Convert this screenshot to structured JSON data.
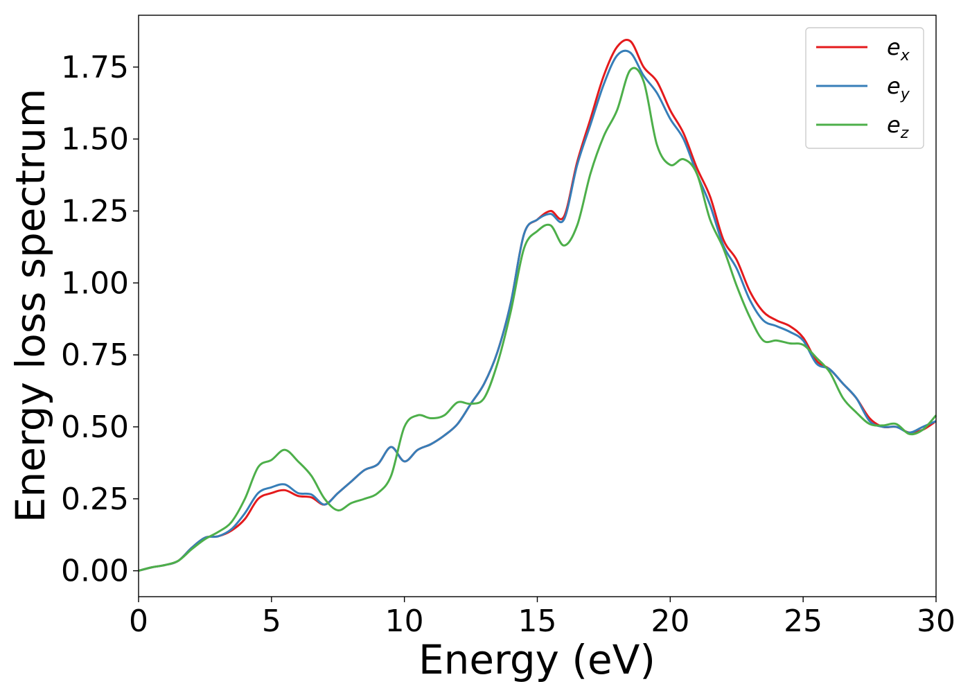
{
  "chart_data": {
    "type": "line",
    "title": "",
    "xlabel": "Energy (eV)",
    "ylabel": "Energy loss spectrum",
    "xlim": [
      0,
      30
    ],
    "ylim": [
      -0.09,
      1.93
    ],
    "xticks": [
      0,
      5,
      10,
      15,
      20,
      25,
      30
    ],
    "xtick_labels": [
      "0",
      "5",
      "10",
      "15",
      "20",
      "25",
      "30"
    ],
    "yticks": [
      0.0,
      0.25,
      0.5,
      0.75,
      1.0,
      1.25,
      1.5,
      1.75
    ],
    "ytick_labels": [
      "0.00",
      "0.25",
      "0.50",
      "0.75",
      "1.00",
      "1.25",
      "1.50",
      "1.75"
    ],
    "grid": false,
    "legend_position": "top-right",
    "series": [
      {
        "name": "e_x",
        "label_base": "e",
        "label_sub": "x",
        "color": "#e41a1c",
        "points": [
          [
            0,
            0
          ],
          [
            0.5,
            0.012
          ],
          [
            1,
            0.02
          ],
          [
            1.5,
            0.035
          ],
          [
            2,
            0.08
          ],
          [
            2.5,
            0.115
          ],
          [
            3,
            0.12
          ],
          [
            3.5,
            0.14
          ],
          [
            4,
            0.18
          ],
          [
            4.5,
            0.25
          ],
          [
            5,
            0.27
          ],
          [
            5.5,
            0.28
          ],
          [
            6,
            0.26
          ],
          [
            6.5,
            0.255
          ],
          [
            7,
            0.23
          ],
          [
            7.5,
            0.27
          ],
          [
            8,
            0.31
          ],
          [
            8.5,
            0.35
          ],
          [
            9,
            0.37
          ],
          [
            9.5,
            0.43
          ],
          [
            10,
            0.38
          ],
          [
            10.5,
            0.42
          ],
          [
            11,
            0.44
          ],
          [
            11.5,
            0.47
          ],
          [
            12,
            0.51
          ],
          [
            12.5,
            0.58
          ],
          [
            13,
            0.65
          ],
          [
            13.5,
            0.76
          ],
          [
            14,
            0.93
          ],
          [
            14.5,
            1.17
          ],
          [
            15,
            1.22
          ],
          [
            15.5,
            1.25
          ],
          [
            16,
            1.23
          ],
          [
            16.5,
            1.42
          ],
          [
            17,
            1.57
          ],
          [
            17.5,
            1.72
          ],
          [
            18,
            1.82
          ],
          [
            18.5,
            1.84
          ],
          [
            19,
            1.75
          ],
          [
            19.5,
            1.7
          ],
          [
            20,
            1.6
          ],
          [
            20.5,
            1.52
          ],
          [
            21,
            1.4
          ],
          [
            21.5,
            1.3
          ],
          [
            22,
            1.15
          ],
          [
            22.5,
            1.08
          ],
          [
            23,
            0.97
          ],
          [
            23.5,
            0.9
          ],
          [
            24,
            0.87
          ],
          [
            24.5,
            0.85
          ],
          [
            25,
            0.81
          ],
          [
            25.5,
            0.73
          ],
          [
            26,
            0.7
          ],
          [
            26.5,
            0.65
          ],
          [
            27,
            0.6
          ],
          [
            27.5,
            0.53
          ],
          [
            28,
            0.5
          ],
          [
            28.5,
            0.5
          ],
          [
            29,
            0.48
          ],
          [
            29.5,
            0.49
          ],
          [
            30,
            0.52
          ]
        ]
      },
      {
        "name": "e_y",
        "label_base": "e",
        "label_sub": "y",
        "color": "#377eb8",
        "points": [
          [
            0,
            0
          ],
          [
            0.5,
            0.012
          ],
          [
            1,
            0.02
          ],
          [
            1.5,
            0.035
          ],
          [
            2,
            0.08
          ],
          [
            2.5,
            0.115
          ],
          [
            3,
            0.12
          ],
          [
            3.5,
            0.145
          ],
          [
            4,
            0.2
          ],
          [
            4.5,
            0.27
          ],
          [
            5,
            0.29
          ],
          [
            5.5,
            0.3
          ],
          [
            6,
            0.27
          ],
          [
            6.5,
            0.265
          ],
          [
            7,
            0.23
          ],
          [
            7.5,
            0.27
          ],
          [
            8,
            0.31
          ],
          [
            8.5,
            0.35
          ],
          [
            9,
            0.37
          ],
          [
            9.5,
            0.43
          ],
          [
            10,
            0.38
          ],
          [
            10.5,
            0.42
          ],
          [
            11,
            0.44
          ],
          [
            11.5,
            0.47
          ],
          [
            12,
            0.51
          ],
          [
            12.5,
            0.58
          ],
          [
            13,
            0.65
          ],
          [
            13.5,
            0.76
          ],
          [
            14,
            0.93
          ],
          [
            14.5,
            1.17
          ],
          [
            15,
            1.22
          ],
          [
            15.5,
            1.24
          ],
          [
            16,
            1.22
          ],
          [
            16.5,
            1.41
          ],
          [
            17,
            1.55
          ],
          [
            17.5,
            1.69
          ],
          [
            18,
            1.79
          ],
          [
            18.5,
            1.8
          ],
          [
            19,
            1.72
          ],
          [
            19.5,
            1.66
          ],
          [
            20,
            1.57
          ],
          [
            20.5,
            1.5
          ],
          [
            21,
            1.38
          ],
          [
            21.5,
            1.27
          ],
          [
            22,
            1.13
          ],
          [
            22.5,
            1.05
          ],
          [
            23,
            0.94
          ],
          [
            23.5,
            0.87
          ],
          [
            24,
            0.85
          ],
          [
            24.5,
            0.83
          ],
          [
            25,
            0.8
          ],
          [
            25.5,
            0.72
          ],
          [
            26,
            0.7
          ],
          [
            26.5,
            0.65
          ],
          [
            27,
            0.6
          ],
          [
            27.5,
            0.52
          ],
          [
            28,
            0.5
          ],
          [
            28.5,
            0.5
          ],
          [
            29,
            0.48
          ],
          [
            29.5,
            0.5
          ],
          [
            30,
            0.52
          ]
        ]
      },
      {
        "name": "e_z",
        "label_base": "e",
        "label_sub": "z",
        "color": "#4daf4a",
        "points": [
          [
            0,
            0
          ],
          [
            0.5,
            0.012
          ],
          [
            1,
            0.02
          ],
          [
            1.5,
            0.035
          ],
          [
            2,
            0.075
          ],
          [
            2.5,
            0.11
          ],
          [
            3,
            0.135
          ],
          [
            3.5,
            0.17
          ],
          [
            4,
            0.25
          ],
          [
            4.5,
            0.36
          ],
          [
            5,
            0.385
          ],
          [
            5.5,
            0.42
          ],
          [
            6,
            0.38
          ],
          [
            6.5,
            0.33
          ],
          [
            7,
            0.25
          ],
          [
            7.5,
            0.21
          ],
          [
            8,
            0.235
          ],
          [
            8.5,
            0.25
          ],
          [
            9,
            0.27
          ],
          [
            9.5,
            0.33
          ],
          [
            10,
            0.5
          ],
          [
            10.5,
            0.54
          ],
          [
            11,
            0.53
          ],
          [
            11.5,
            0.54
          ],
          [
            12,
            0.585
          ],
          [
            12.5,
            0.58
          ],
          [
            13,
            0.6
          ],
          [
            13.5,
            0.72
          ],
          [
            14,
            0.9
          ],
          [
            14.5,
            1.12
          ],
          [
            15,
            1.18
          ],
          [
            15.5,
            1.2
          ],
          [
            16,
            1.13
          ],
          [
            16.5,
            1.2
          ],
          [
            17,
            1.38
          ],
          [
            17.5,
            1.51
          ],
          [
            18,
            1.6
          ],
          [
            18.5,
            1.74
          ],
          [
            19,
            1.7
          ],
          [
            19.5,
            1.48
          ],
          [
            20,
            1.41
          ],
          [
            20.5,
            1.43
          ],
          [
            21,
            1.38
          ],
          [
            21.5,
            1.22
          ],
          [
            22,
            1.12
          ],
          [
            22.5,
            0.99
          ],
          [
            23,
            0.88
          ],
          [
            23.5,
            0.8
          ],
          [
            24,
            0.8
          ],
          [
            24.5,
            0.79
          ],
          [
            25,
            0.785
          ],
          [
            25.5,
            0.74
          ],
          [
            26,
            0.69
          ],
          [
            26.5,
            0.6
          ],
          [
            27,
            0.55
          ],
          [
            27.5,
            0.51
          ],
          [
            28,
            0.505
          ],
          [
            28.5,
            0.51
          ],
          [
            29,
            0.475
          ],
          [
            29.5,
            0.49
          ],
          [
            30,
            0.54
          ]
        ]
      }
    ]
  }
}
